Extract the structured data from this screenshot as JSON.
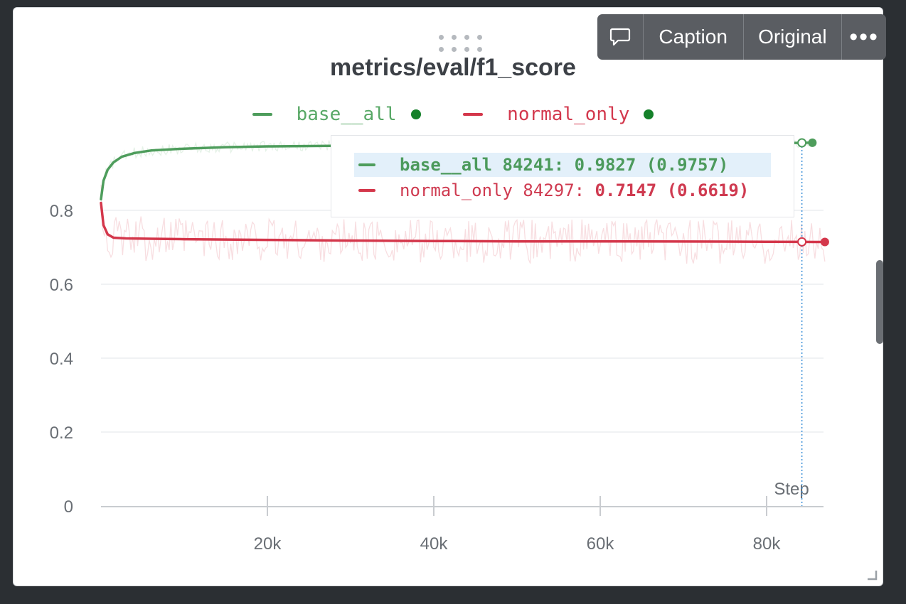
{
  "panel": {
    "title": "metrics/eval/f1_score",
    "toolbar": {
      "comment_icon": "speech-bubble-icon",
      "caption_label": "Caption",
      "original_label": "Original",
      "more_icon": "ellipsis-icon"
    }
  },
  "tooltip": {
    "rows": [
      {
        "series": "base__all",
        "step": 84241,
        "text": "base__all 84241: 0.9827 (0.9757)"
      },
      {
        "series": "normal_only",
        "step": 84297,
        "prefix": "normal_only 84297: ",
        "value": "0.7147 (0.6619)"
      }
    ]
  },
  "colors": {
    "base__all": "#4e9d5c",
    "normal_only": "#d4374b",
    "legend_dot": "#15812a"
  },
  "chart_data": {
    "type": "line",
    "title": "metrics/eval/f1_score",
    "xlabel": "Step",
    "ylabel": "",
    "xlim": [
      0,
      87000
    ],
    "ylim": [
      0,
      1.0
    ],
    "x_ticks": [
      20000,
      40000,
      60000,
      80000
    ],
    "x_tick_labels": [
      "20k",
      "40k",
      "60k",
      "80k"
    ],
    "y_ticks": [
      0,
      0.2,
      0.4,
      0.6,
      0.8
    ],
    "y_tick_labels": [
      "0",
      "0.2",
      "0.4",
      "0.6",
      "0.8"
    ],
    "grid": true,
    "legend": "top-center",
    "hover_step": 84241,
    "series": [
      {
        "name": "base__all",
        "x": [
          0,
          300,
          800,
          1500,
          2500,
          4000,
          6000,
          10000,
          15000,
          20000,
          30000,
          40000,
          50000,
          60000,
          70000,
          80000,
          84241,
          85500
        ],
        "values": [
          0.83,
          0.88,
          0.91,
          0.93,
          0.945,
          0.955,
          0.962,
          0.967,
          0.971,
          0.973,
          0.975,
          0.976,
          0.977,
          0.978,
          0.979,
          0.981,
          0.9827,
          0.983
        ]
      },
      {
        "name": "normal_only",
        "x": [
          0,
          300,
          800,
          1500,
          3000,
          6000,
          10000,
          20000,
          30000,
          40000,
          50000,
          60000,
          70000,
          80000,
          84297,
          87000
        ],
        "values": [
          0.82,
          0.76,
          0.735,
          0.726,
          0.724,
          0.723,
          0.722,
          0.72,
          0.718,
          0.717,
          0.716,
          0.716,
          0.7155,
          0.715,
          0.7147,
          0.7145
        ]
      }
    ]
  }
}
